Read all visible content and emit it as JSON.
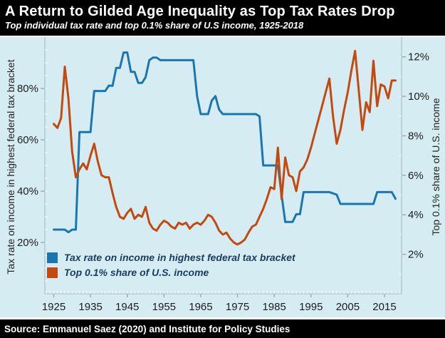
{
  "footer": {
    "source": "Source: Emmanuel Saez (2020) and Institute for Policy Studies"
  },
  "colors": {
    "header_bg": "#000000",
    "header_text": "#ffffff",
    "panel_bg": "#d5edf2",
    "axis_line": "#b0c4ca",
    "tick_mark": "#8ea7ae",
    "tick_text": "#1c1c1c",
    "legend_text": "#1b3a5e",
    "blue": "#1b76b0",
    "orange": "#c4490e"
  },
  "chart_data": {
    "type": "line",
    "title": "A Return to Gilded Age Inequality as Top Tax Rates Drop",
    "subtitle": "Top individual tax rate and top 0.1% share of U.S income, 1925-2018",
    "legend_position": "inside-bottom-left",
    "grid": false,
    "x_axis": {
      "range": [
        1923,
        2019
      ],
      "minor_tick_every_years": 1,
      "ticks": [
        {
          "value": 1925,
          "label": "1925"
        },
        {
          "value": 1935,
          "label": "1935"
        },
        {
          "value": 1945,
          "label": "1945"
        },
        {
          "value": 1955,
          "label": "1955"
        },
        {
          "value": 1965,
          "label": "1965"
        },
        {
          "value": 1975,
          "label": "1975"
        },
        {
          "value": 1985,
          "label": "1985"
        },
        {
          "value": 1995,
          "label": "1995"
        },
        {
          "value": 2005,
          "label": "2005"
        },
        {
          "value": 2015,
          "label": "2015"
        }
      ]
    },
    "left_axis": {
      "label": "Tax rate on income in highest federal tax bracket",
      "range": [
        0,
        100
      ],
      "ticks": [
        {
          "value": 20,
          "label": "20%"
        },
        {
          "value": 40,
          "label": "40%"
        },
        {
          "value": 60,
          "label": "60%"
        },
        {
          "value": 80,
          "label": "80%"
        }
      ]
    },
    "right_axis": {
      "label": "Top 0.1% share of U.S. income",
      "range": [
        0,
        13
      ],
      "ticks": [
        {
          "value": 2,
          "label": "2%"
        },
        {
          "value": 4,
          "label": "4%"
        },
        {
          "value": 6,
          "label": "6%"
        },
        {
          "value": 8,
          "label": "8%"
        },
        {
          "value": 10,
          "label": "10%"
        },
        {
          "value": 12,
          "label": "12%"
        }
      ]
    },
    "series": [
      {
        "name": "Tax rate on income in highest federal tax bracket",
        "axis": "left",
        "color_key": "blue",
        "data": [
          [
            1925,
            25
          ],
          [
            1926,
            25
          ],
          [
            1927,
            25
          ],
          [
            1928,
            25
          ],
          [
            1929,
            24
          ],
          [
            1930,
            25
          ],
          [
            1931,
            25
          ],
          [
            1932,
            63
          ],
          [
            1933,
            63
          ],
          [
            1934,
            63
          ],
          [
            1935,
            63
          ],
          [
            1936,
            79
          ],
          [
            1937,
            79
          ],
          [
            1938,
            79
          ],
          [
            1939,
            79
          ],
          [
            1940,
            81.1
          ],
          [
            1941,
            81
          ],
          [
            1942,
            88
          ],
          [
            1943,
            88
          ],
          [
            1944,
            94
          ],
          [
            1945,
            94
          ],
          [
            1946,
            86.45
          ],
          [
            1947,
            86.45
          ],
          [
            1948,
            82.13
          ],
          [
            1949,
            82.13
          ],
          [
            1950,
            84.36
          ],
          [
            1951,
            91
          ],
          [
            1952,
            92
          ],
          [
            1953,
            92
          ],
          [
            1954,
            91
          ],
          [
            1955,
            91
          ],
          [
            1956,
            91
          ],
          [
            1957,
            91
          ],
          [
            1958,
            91
          ],
          [
            1959,
            91
          ],
          [
            1960,
            91
          ],
          [
            1961,
            91
          ],
          [
            1962,
            91
          ],
          [
            1963,
            91
          ],
          [
            1964,
            77
          ],
          [
            1965,
            70
          ],
          [
            1966,
            70
          ],
          [
            1967,
            70
          ],
          [
            1968,
            75.25
          ],
          [
            1969,
            77
          ],
          [
            1970,
            71.75
          ],
          [
            1971,
            70
          ],
          [
            1972,
            70
          ],
          [
            1973,
            70
          ],
          [
            1974,
            70
          ],
          [
            1975,
            70
          ],
          [
            1976,
            70
          ],
          [
            1977,
            70
          ],
          [
            1978,
            70
          ],
          [
            1979,
            70
          ],
          [
            1980,
            70
          ],
          [
            1981,
            69.13
          ],
          [
            1982,
            50
          ],
          [
            1983,
            50
          ],
          [
            1984,
            50
          ],
          [
            1985,
            50
          ],
          [
            1986,
            50
          ],
          [
            1987,
            38.5
          ],
          [
            1988,
            28
          ],
          [
            1989,
            28
          ],
          [
            1990,
            28
          ],
          [
            1991,
            31
          ],
          [
            1992,
            31
          ],
          [
            1993,
            39.6
          ],
          [
            1994,
            39.6
          ],
          [
            1995,
            39.6
          ],
          [
            1996,
            39.6
          ],
          [
            1997,
            39.6
          ],
          [
            1998,
            39.6
          ],
          [
            1999,
            39.6
          ],
          [
            2000,
            39.6
          ],
          [
            2001,
            39.1
          ],
          [
            2002,
            38.6
          ],
          [
            2003,
            35
          ],
          [
            2004,
            35
          ],
          [
            2005,
            35
          ],
          [
            2006,
            35
          ],
          [
            2007,
            35
          ],
          [
            2008,
            35
          ],
          [
            2009,
            35
          ],
          [
            2010,
            35
          ],
          [
            2011,
            35
          ],
          [
            2012,
            35
          ],
          [
            2013,
            39.6
          ],
          [
            2014,
            39.6
          ],
          [
            2015,
            39.6
          ],
          [
            2016,
            39.6
          ],
          [
            2017,
            39.6
          ],
          [
            2018,
            37
          ]
        ]
      },
      {
        "name": "Top 0.1% share of U.S. income",
        "axis": "right",
        "color_key": "orange",
        "data": [
          [
            1925,
            8.6
          ],
          [
            1926,
            8.4
          ],
          [
            1927,
            8.9
          ],
          [
            1928,
            11.5
          ],
          [
            1929,
            9.9
          ],
          [
            1930,
            7.2
          ],
          [
            1931,
            5.9
          ],
          [
            1932,
            6.3
          ],
          [
            1933,
            6.6
          ],
          [
            1934,
            6.3
          ],
          [
            1935,
            7.0
          ],
          [
            1936,
            7.6
          ],
          [
            1937,
            6.7
          ],
          [
            1938,
            6.0
          ],
          [
            1939,
            5.9
          ],
          [
            1940,
            5.9
          ],
          [
            1941,
            5.1
          ],
          [
            1942,
            4.4
          ],
          [
            1943,
            3.9
          ],
          [
            1944,
            3.8
          ],
          [
            1945,
            4.1
          ],
          [
            1946,
            4.3
          ],
          [
            1947,
            3.8
          ],
          [
            1948,
            4.0
          ],
          [
            1949,
            3.9
          ],
          [
            1950,
            4.4
          ],
          [
            1951,
            3.6
          ],
          [
            1952,
            3.3
          ],
          [
            1953,
            3.2
          ],
          [
            1954,
            3.5
          ],
          [
            1955,
            3.7
          ],
          [
            1956,
            3.6
          ],
          [
            1957,
            3.4
          ],
          [
            1958,
            3.3
          ],
          [
            1959,
            3.6
          ],
          [
            1960,
            3.5
          ],
          [
            1961,
            3.6
          ],
          [
            1962,
            3.3
          ],
          [
            1963,
            3.5
          ],
          [
            1964,
            3.6
          ],
          [
            1965,
            3.5
          ],
          [
            1966,
            3.7
          ],
          [
            1967,
            4.0
          ],
          [
            1968,
            3.9
          ],
          [
            1969,
            3.6
          ],
          [
            1970,
            3.2
          ],
          [
            1971,
            3.0
          ],
          [
            1972,
            3.1
          ],
          [
            1973,
            2.8
          ],
          [
            1974,
            2.6
          ],
          [
            1975,
            2.5
          ],
          [
            1976,
            2.6
          ],
          [
            1977,
            2.75
          ],
          [
            1978,
            3.1
          ],
          [
            1979,
            3.4
          ],
          [
            1980,
            3.5
          ],
          [
            1981,
            3.9
          ],
          [
            1982,
            4.3
          ],
          [
            1983,
            4.8
          ],
          [
            1984,
            5.4
          ],
          [
            1985,
            5.3
          ],
          [
            1986,
            7.4
          ],
          [
            1987,
            4.8
          ],
          [
            1988,
            6.9
          ],
          [
            1989,
            6.0
          ],
          [
            1990,
            5.9
          ],
          [
            1991,
            5.2
          ],
          [
            1992,
            6.2
          ],
          [
            1993,
            6.4
          ],
          [
            1994,
            6.8
          ],
          [
            1995,
            7.4
          ],
          [
            1996,
            8.1
          ],
          [
            1997,
            8.8
          ],
          [
            1998,
            9.5
          ],
          [
            1999,
            10.2
          ],
          [
            2000,
            10.9
          ],
          [
            2001,
            9.0
          ],
          [
            2002,
            7.6
          ],
          [
            2003,
            8.3
          ],
          [
            2004,
            9.3
          ],
          [
            2005,
            10.2
          ],
          [
            2006,
            11.3
          ],
          [
            2007,
            12.3
          ],
          [
            2008,
            10.3
          ],
          [
            2009,
            8.3
          ],
          [
            2010,
            9.7
          ],
          [
            2011,
            9.2
          ],
          [
            2012,
            11.8
          ],
          [
            2013,
            9.5
          ],
          [
            2014,
            10.6
          ],
          [
            2015,
            10.5
          ],
          [
            2016,
            9.9
          ],
          [
            2017,
            10.8
          ],
          [
            2018,
            10.8
          ]
        ]
      }
    ]
  }
}
